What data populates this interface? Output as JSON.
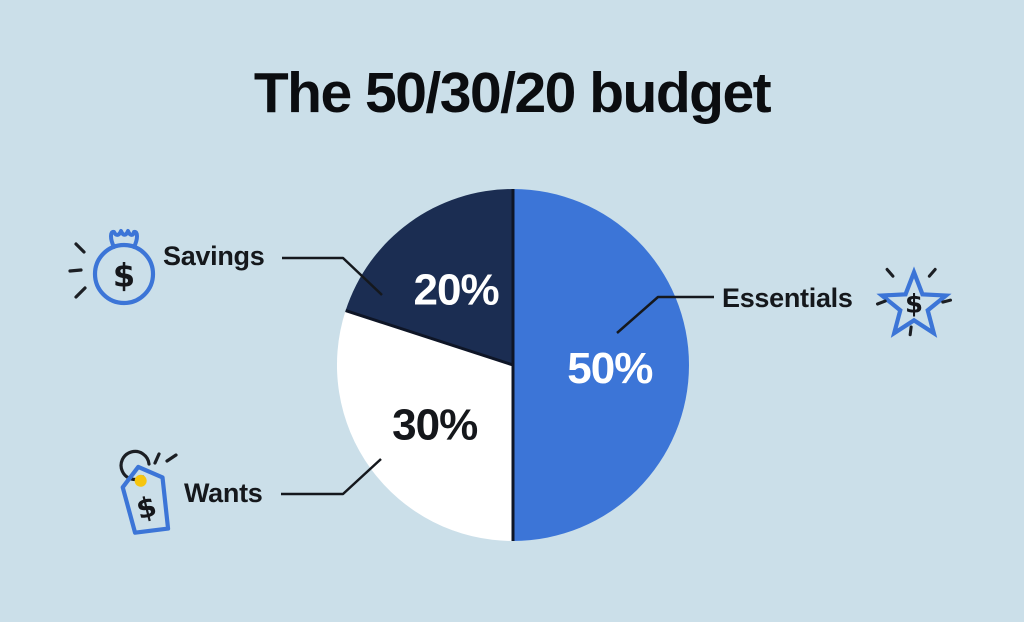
{
  "title": "The 50/30/20 budget",
  "background_color": "#cbdfe9",
  "accent_blue": "#3c75d7",
  "navy": "#1b2d52",
  "chart_data": {
    "type": "pie",
    "title": "The 50/30/20 budget",
    "start_angle_deg": 0,
    "direction": "clockwise",
    "divider_color": "#0e1526",
    "slices": [
      {
        "label": "Essentials",
        "value": 50,
        "percent_label": "50%",
        "color": "#3c75d7",
        "label_color": "#ffffff"
      },
      {
        "label": "Wants",
        "value": 30,
        "percent_label": "30%",
        "color": "#ffffff",
        "label_color": "#15171b"
      },
      {
        "label": "Savings",
        "value": 20,
        "percent_label": "20%",
        "color": "#1b2d52",
        "label_color": "#ffffff"
      }
    ],
    "callouts": [
      {
        "slice": "Savings",
        "label": "Savings",
        "icon": "money-bag-icon"
      },
      {
        "slice": "Wants",
        "label": "Wants",
        "icon": "price-tag-icon"
      },
      {
        "slice": "Essentials",
        "label": "Essentials",
        "icon": "star-dollar-icon"
      }
    ],
    "legend_position": "callouts"
  },
  "icons": {
    "money_bag_symbol": "$",
    "price_tag_symbol": "$",
    "star_symbol": "$"
  }
}
